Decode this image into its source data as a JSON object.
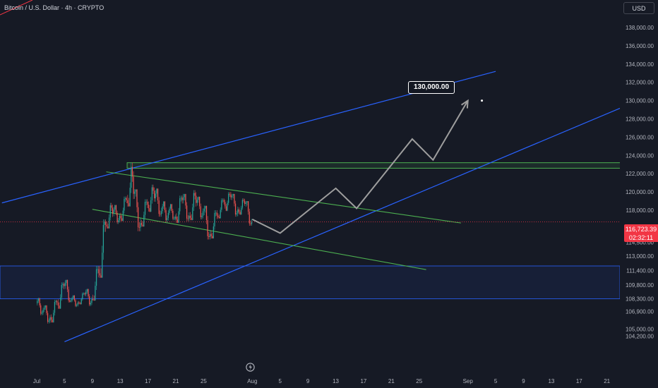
{
  "header": {
    "symbol_title": "Bitcoin / U.S. Dollar · 4h · CRYPTO",
    "currency": "USD"
  },
  "price_label": {
    "price": "116,723.39",
    "countdown": "02:32:11"
  },
  "annotation": {
    "target_label": "130,000.00"
  },
  "colors": {
    "background": "#161a25",
    "up": "#26a69a",
    "down": "#ef5350",
    "trend_channel": "#2962ff",
    "flag": "#4caf50",
    "zone": "#1e3a8a",
    "projection": "#9e9e9e",
    "last_price": "#f23645"
  },
  "chart_data": {
    "type": "candlestick",
    "title": "Bitcoin / U.S. Dollar · 4h · CRYPTO",
    "y_axis": {
      "label": "USD",
      "ticks": [
        "138,000.00",
        "136,000.00",
        "134,000.00",
        "132,000.00",
        "130,000.00",
        "128,000.00",
        "126,000.00",
        "124,000.00",
        "122,000.00",
        "120,000.00",
        "118,000.00",
        "114,500.00",
        "113,000.00",
        "111,400.00",
        "109,800.00",
        "108,300.00",
        "106,900.00",
        "105,000.00",
        "104,200.00"
      ],
      "tick_values": [
        138000,
        136000,
        134000,
        132000,
        130000,
        128000,
        126000,
        124000,
        122000,
        120000,
        118000,
        114500,
        113000,
        111400,
        109800,
        108300,
        106900,
        105000,
        104200
      ]
    },
    "x_axis": {
      "ticks": [
        "Jul",
        "5",
        "9",
        "13",
        "17",
        "21",
        "25",
        "Aug",
        "5",
        "9",
        "13",
        "17",
        "21",
        "25",
        "Sep",
        "5",
        "9",
        "13",
        "17",
        "21"
      ],
      "tick_days": [
        0,
        4,
        8,
        12,
        16,
        20,
        24,
        31,
        35,
        39,
        43,
        47,
        51,
        55,
        62,
        66,
        70,
        74,
        78,
        82
      ]
    },
    "ohlc_daily": [
      {
        "day": 0,
        "o": 107800,
        "h": 108400,
        "l": 106500,
        "c": 107100
      },
      {
        "day": 1,
        "o": 107100,
        "h": 107600,
        "l": 105600,
        "c": 106300
      },
      {
        "day": 2,
        "o": 106300,
        "h": 108200,
        "l": 105700,
        "c": 107900
      },
      {
        "day": 3,
        "o": 107900,
        "h": 110100,
        "l": 107200,
        "c": 109700
      },
      {
        "day": 4,
        "o": 109700,
        "h": 110400,
        "l": 107900,
        "c": 108100
      },
      {
        "day": 5,
        "o": 108100,
        "h": 108700,
        "l": 107400,
        "c": 107900
      },
      {
        "day": 6,
        "o": 107900,
        "h": 109000,
        "l": 107700,
        "c": 108800
      },
      {
        "day": 7,
        "o": 108800,
        "h": 109400,
        "l": 107500,
        "c": 108300
      },
      {
        "day": 8,
        "o": 108300,
        "h": 111900,
        "l": 108100,
        "c": 111100
      },
      {
        "day": 9,
        "o": 111100,
        "h": 117000,
        "l": 110600,
        "c": 116400
      },
      {
        "day": 10,
        "o": 116400,
        "h": 118800,
        "l": 116000,
        "c": 117600
      },
      {
        "day": 11,
        "o": 117600,
        "h": 118600,
        "l": 116500,
        "c": 117400
      },
      {
        "day": 12,
        "o": 117400,
        "h": 119500,
        "l": 116800,
        "c": 119100
      },
      {
        "day": 13,
        "o": 119100,
        "h": 123200,
        "l": 118400,
        "c": 119800
      },
      {
        "day": 14,
        "o": 119800,
        "h": 120300,
        "l": 115700,
        "c": 116600
      },
      {
        "day": 15,
        "o": 116600,
        "h": 119200,
        "l": 116200,
        "c": 118600
      },
      {
        "day": 16,
        "o": 118600,
        "h": 120800,
        "l": 117800,
        "c": 119300
      },
      {
        "day": 17,
        "o": 119300,
        "h": 120400,
        "l": 117300,
        "c": 117900
      },
      {
        "day": 18,
        "o": 117900,
        "h": 119000,
        "l": 116700,
        "c": 117700
      },
      {
        "day": 19,
        "o": 117700,
        "h": 118700,
        "l": 116900,
        "c": 117300
      },
      {
        "day": 20,
        "o": 117300,
        "h": 119600,
        "l": 116600,
        "c": 119100
      },
      {
        "day": 21,
        "o": 119100,
        "h": 119800,
        "l": 116800,
        "c": 117400
      },
      {
        "day": 22,
        "o": 117400,
        "h": 120200,
        "l": 116900,
        "c": 118800
      },
      {
        "day": 23,
        "o": 118800,
        "h": 119500,
        "l": 117000,
        "c": 117900
      },
      {
        "day": 24,
        "o": 117900,
        "h": 118500,
        "l": 114800,
        "c": 115400
      },
      {
        "day": 25,
        "o": 115400,
        "h": 118000,
        "l": 114900,
        "c": 117400
      },
      {
        "day": 26,
        "o": 117400,
        "h": 119300,
        "l": 117100,
        "c": 118900
      },
      {
        "day": 27,
        "o": 118900,
        "h": 120000,
        "l": 117900,
        "c": 119400
      },
      {
        "day": 28,
        "o": 119400,
        "h": 119800,
        "l": 117300,
        "c": 118100
      },
      {
        "day": 29,
        "o": 118100,
        "h": 119300,
        "l": 117500,
        "c": 118700
      },
      {
        "day": 30,
        "o": 118700,
        "h": 119000,
        "l": 116300,
        "c": 116723.39
      }
    ],
    "last_price": 116723.39,
    "drawings": {
      "rising_channel_upper": [
        [
          -5,
          118800
        ],
        [
          66,
          133200
        ]
      ],
      "rising_channel_lower": [
        [
          4,
          103600
        ],
        [
          84,
          129200
        ]
      ],
      "flag_upper": [
        [
          10,
          122200
        ],
        [
          61,
          116600
        ]
      ],
      "flag_lower": [
        [
          8,
          118100
        ],
        [
          56,
          111500
        ]
      ],
      "resistance_box": {
        "x0": 13,
        "x1": 85,
        "y0": 122600,
        "y1": 123200
      },
      "demand_zone": {
        "y0": 108300,
        "y1": 111900
      },
      "projection_path": [
        [
          31,
          117000
        ],
        [
          35,
          115500
        ],
        [
          43,
          120400
        ],
        [
          46,
          118200
        ],
        [
          54,
          125800
        ],
        [
          57,
          123500
        ],
        [
          62,
          130000
        ]
      ],
      "target": {
        "day": 63,
        "price": 130000
      }
    }
  }
}
